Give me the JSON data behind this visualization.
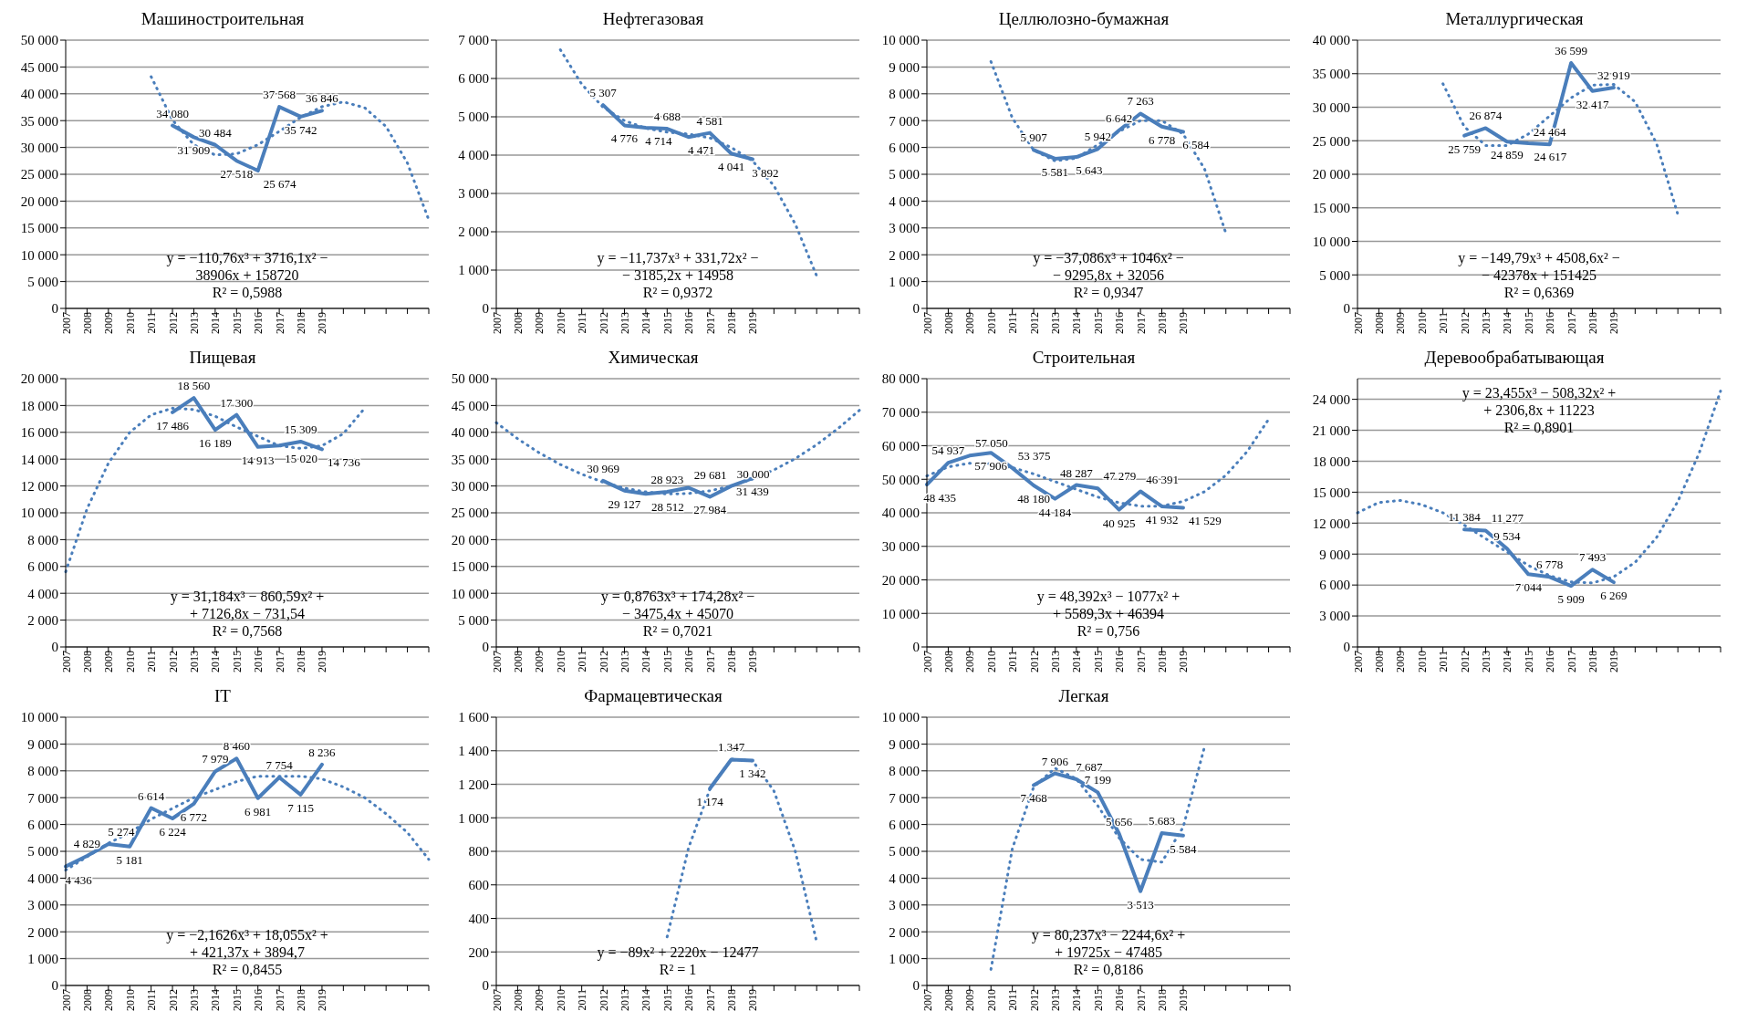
{
  "chart_data": [
    {
      "type": "line",
      "title": "Машиностроительная",
      "categories": [
        "2007",
        "2008",
        "2009",
        "2010",
        "2011",
        "2012",
        "2013",
        "2014",
        "2015",
        "2016",
        "2017",
        "2018",
        "2019",
        null,
        null,
        null,
        null,
        null
      ],
      "ylim": [
        0,
        50000
      ],
      "yticks": [
        0,
        5000,
        10000,
        15000,
        20000,
        25000,
        30000,
        35000,
        40000,
        45000,
        50000
      ],
      "grid": "y",
      "annotations": [
        "y = −110,76x³ + 3716,1x² −",
        "38906x + 158720",
        "R² = 0,5988"
      ],
      "series": [
        {
          "color": "#4a7ebb",
          "line_style": "solid",
          "data_labels": true,
          "values": [
            null,
            null,
            null,
            null,
            null,
            34080,
            31909,
            30484,
            27518,
            25674,
            37568,
            35742,
            36846,
            null,
            null,
            null,
            null,
            null
          ]
        },
        {
          "type": "line",
          "color": "#4a7ebb",
          "line_style": "dotted",
          "values": [
            null,
            null,
            null,
            null,
            43200,
            35100,
            30500,
            28600,
            28800,
            30500,
            33000,
            35600,
            37600,
            38500,
            37400,
            33900,
            27100,
            16500
          ]
        }
      ]
    },
    {
      "type": "line",
      "title": "Нефтегазовая",
      "categories": [
        "2007",
        "2008",
        "2009",
        "2010",
        "2011",
        "2012",
        "2013",
        "2014",
        "2015",
        "2016",
        "2017",
        "2018",
        "2019",
        null,
        null,
        null,
        null,
        null
      ],
      "ylim": [
        0,
        7000
      ],
      "yticks": [
        0,
        1000,
        2000,
        3000,
        4000,
        5000,
        6000,
        7000
      ],
      "grid": "y",
      "annotations": [
        "y = −11,737x³ + 331,72x² −",
        "− 3185,2x + 14958",
        "R² = 0,9372"
      ],
      "series": [
        {
          "color": "#4a7ebb",
          "line_style": "solid",
          "data_labels": true,
          "values": [
            null,
            null,
            null,
            null,
            null,
            5307,
            4776,
            4714,
            4688,
            4471,
            4581,
            4041,
            3892,
            null,
            null,
            null,
            null,
            null
          ]
        },
        {
          "type": "line",
          "color": "#4a7ebb",
          "line_style": "dotted",
          "values": [
            null,
            null,
            null,
            6750,
            5850,
            5250,
            4900,
            4700,
            4600,
            4550,
            4450,
            4200,
            3850,
            3200,
            2200,
            850,
            null,
            null
          ]
        }
      ]
    },
    {
      "type": "line",
      "title": "Целлюлозно-бумажная",
      "categories": [
        "2007",
        "2008",
        "2009",
        "2010",
        "2011",
        "2012",
        "2013",
        "2014",
        "2015",
        "2016",
        "2017",
        "2018",
        "2019",
        null,
        null,
        null,
        null,
        null
      ],
      "ylim": [
        0,
        10000
      ],
      "yticks": [
        0,
        1000,
        2000,
        3000,
        4000,
        5000,
        6000,
        7000,
        8000,
        9000,
        10000
      ],
      "grid": "y",
      "annotations": [
        "y = −37,086x³ + 1046x² −",
        "− 9295,8x + 32056",
        "R² = 0,9347"
      ],
      "series": [
        {
          "color": "#4a7ebb",
          "line_style": "solid",
          "data_labels": true,
          "values": [
            null,
            null,
            null,
            null,
            null,
            5907,
            5581,
            5643,
            5942,
            6642,
            7263,
            6778,
            6584,
            null,
            null,
            null,
            null,
            null
          ]
        },
        {
          "type": "line",
          "color": "#4a7ebb",
          "line_style": "dotted",
          "values": [
            null,
            null,
            null,
            9200,
            7100,
            5900,
            5500,
            5600,
            6100,
            6600,
            7000,
            7000,
            6500,
            5200,
            2800,
            null,
            null,
            null
          ]
        }
      ]
    },
    {
      "type": "line",
      "title": "Металлургическая",
      "categories": [
        "2007",
        "2008",
        "2009",
        "2010",
        "2011",
        "2012",
        "2013",
        "2014",
        "2015",
        "2016",
        "2017",
        "2018",
        "2019",
        null,
        null,
        null,
        null,
        null
      ],
      "ylim": [
        0,
        40000
      ],
      "yticks": [
        0,
        5000,
        10000,
        15000,
        20000,
        25000,
        30000,
        35000,
        40000
      ],
      "grid": "y",
      "annotations": [
        "y = −149,79x³ + 4508,6x² −",
        "− 42378x + 151425",
        "R² = 0,6369"
      ],
      "series": [
        {
          "color": "#4a7ebb",
          "line_style": "solid",
          "data_labels": true,
          "values": [
            null,
            null,
            null,
            null,
            null,
            25759,
            26874,
            24859,
            24617,
            24464,
            36599,
            32417,
            32919,
            null,
            null,
            null,
            null,
            null
          ]
        },
        {
          "type": "line",
          "color": "#4a7ebb",
          "line_style": "dotted",
          "values": [
            null,
            null,
            null,
            null,
            33500,
            27100,
            24300,
            24300,
            26000,
            28700,
            31400,
            33300,
            33400,
            30800,
            24600,
            14000,
            null,
            null
          ]
        }
      ]
    },
    {
      "type": "line",
      "title": "Пищевая",
      "categories": [
        "2007",
        "2008",
        "2009",
        "2010",
        "2011",
        "2012",
        "2013",
        "2014",
        "2015",
        "2016",
        "2017",
        "2018",
        "2019",
        null,
        null,
        null,
        null,
        null
      ],
      "ylim": [
        0,
        20000
      ],
      "yticks": [
        0,
        2000,
        4000,
        6000,
        8000,
        10000,
        12000,
        14000,
        16000,
        18000,
        20000
      ],
      "grid": "y",
      "annotations": [
        "y = 31,184x³ − 860,59x² +",
        "+ 7126,8x − 731,54",
        "R² = 0,7568"
      ],
      "series": [
        {
          "color": "#4a7ebb",
          "line_style": "solid",
          "data_labels": true,
          "values": [
            null,
            null,
            null,
            null,
            null,
            17486,
            18560,
            16189,
            17300,
            14913,
            15020,
            15309,
            14736,
            null,
            null,
            null,
            null,
            null
          ]
        },
        {
          "type": "line",
          "color": "#4a7ebb",
          "line_style": "dotted",
          "values": [
            5600,
            10300,
            13700,
            16000,
            17300,
            17800,
            17700,
            17200,
            16400,
            15700,
            15000,
            14800,
            15000,
            15900,
            17800,
            null,
            null,
            null
          ]
        }
      ]
    },
    {
      "type": "line",
      "title": "Химическая",
      "categories": [
        "2007",
        "2008",
        "2009",
        "2010",
        "2011",
        "2012",
        "2013",
        "2014",
        "2015",
        "2016",
        "2017",
        "2018",
        "2019",
        null,
        null,
        null,
        null,
        null
      ],
      "ylim": [
        0,
        50000
      ],
      "yticks": [
        0,
        5000,
        10000,
        15000,
        20000,
        25000,
        30000,
        35000,
        40000,
        45000,
        50000
      ],
      "grid": "y",
      "annotations": [
        "y = 0,8763x³ + 174,28x² −",
        "− 3475,4x + 45070",
        "R² = 0,7021"
      ],
      "series": [
        {
          "color": "#4a7ebb",
          "line_style": "solid",
          "data_labels": true,
          "values": [
            null,
            null,
            null,
            null,
            null,
            30969,
            29127,
            28512,
            28923,
            29681,
            27984,
            30000,
            31439,
            null,
            null,
            null,
            null,
            null
          ]
        },
        {
          "type": "line",
          "color": "#4a7ebb",
          "line_style": "dotted",
          "values": [
            41800,
            38800,
            36200,
            34000,
            32200,
            30700,
            29600,
            28900,
            28500,
            28600,
            29100,
            30000,
            31300,
            33000,
            35100,
            37700,
            40700,
            44100
          ]
        }
      ]
    },
    {
      "type": "line",
      "title": "Строительная",
      "categories": [
        "2007",
        "2008",
        "2009",
        "2010",
        "2011",
        "2012",
        "2013",
        "2014",
        "2015",
        "2016",
        "2017",
        "2018",
        "2019",
        null,
        null,
        null,
        null,
        null
      ],
      "ylim": [
        0,
        80000
      ],
      "yticks": [
        0,
        10000,
        20000,
        30000,
        40000,
        50000,
        60000,
        70000,
        80000
      ],
      "grid": "y",
      "annotations": [
        "y = 48,392x³ − 1077x² +",
        "+ 5589,3x + 46394",
        "R² = 0,756"
      ],
      "series": [
        {
          "color": "#4a7ebb",
          "line_style": "solid",
          "data_labels": true,
          "values": [
            48435,
            54937,
            57050,
            57906,
            53375,
            48180,
            44184,
            48287,
            47279,
            40925,
            46391,
            41932,
            41529,
            null,
            null,
            null,
            null,
            null
          ]
        },
        {
          "type": "line",
          "color": "#4a7ebb",
          "line_style": "dotted",
          "values": [
            51000,
            53700,
            54800,
            54600,
            53500,
            51600,
            49300,
            47000,
            44700,
            43000,
            42000,
            42000,
            43400,
            46300,
            51200,
            58300,
            67900,
            null
          ]
        }
      ]
    },
    {
      "type": "line",
      "title": "Деревообрабатывающая",
      "categories": [
        "2007",
        "2008",
        "2009",
        "2010",
        "2011",
        "2012",
        "2013",
        "2014",
        "2015",
        "2016",
        "2017",
        "2018",
        "2019",
        null,
        null,
        null,
        null,
        null
      ],
      "ylim": [
        0,
        26000
      ],
      "yticks": [
        0,
        3000,
        6000,
        9000,
        12000,
        15000,
        18000,
        21000,
        24000
      ],
      "grid": "y",
      "annotations": [
        "y = 23,455x³ − 508,32x² +",
        "+ 2306,8x + 11223",
        "R² = 0,8901"
      ],
      "series": [
        {
          "color": "#4a7ebb",
          "line_style": "solid",
          "data_labels": true,
          "values": [
            null,
            null,
            null,
            null,
            null,
            11384,
            11277,
            9534,
            7044,
            6778,
            5909,
            7493,
            6269,
            null,
            null,
            null,
            null,
            null
          ]
        },
        {
          "type": "line",
          "color": "#4a7ebb",
          "line_style": "dotted",
          "values": [
            13000,
            14000,
            14200,
            13800,
            13000,
            11800,
            10500,
            9200,
            7900,
            6900,
            6300,
            6200,
            6800,
            8200,
            10600,
            14100,
            18800,
            24800
          ]
        }
      ]
    },
    {
      "type": "line",
      "title": "IT",
      "categories": [
        "2007",
        "2008",
        "2009",
        "2010",
        "2011",
        "2012",
        "2013",
        "2014",
        "2015",
        "2016",
        "2017",
        "2018",
        "2019",
        null,
        null,
        null,
        null,
        null
      ],
      "ylim": [
        0,
        10000
      ],
      "yticks": [
        0,
        1000,
        2000,
        3000,
        4000,
        5000,
        6000,
        7000,
        8000,
        9000,
        10000
      ],
      "grid": "y",
      "annotations": [
        "y = −2,1626x³ + 18,055x² +",
        "+ 421,37x + 3894,7",
        "R² = 0,8455"
      ],
      "series": [
        {
          "color": "#4a7ebb",
          "line_style": "solid",
          "data_labels": true,
          "values": [
            4436,
            4829,
            5274,
            5181,
            6614,
            6224,
            6772,
            7979,
            8460,
            6981,
            7754,
            7115,
            8236,
            null,
            null,
            null,
            null,
            null
          ]
        },
        {
          "type": "line",
          "color": "#4a7ebb",
          "line_style": "dotted",
          "values": [
            4300,
            4800,
            5300,
            5700,
            6200,
            6600,
            7000,
            7300,
            7600,
            7800,
            7800,
            7800,
            7700,
            7400,
            7000,
            6400,
            5700,
            4700
          ]
        }
      ]
    },
    {
      "type": "line",
      "title": "Фармацевтическая",
      "categories": [
        "2007",
        "2008",
        "2009",
        "2010",
        "2011",
        "2012",
        "2013",
        "2014",
        "2015",
        "2016",
        "2017",
        "2018",
        "2019",
        null,
        null,
        null,
        null,
        null
      ],
      "ylim": [
        0,
        1600
      ],
      "yticks": [
        0,
        200,
        400,
        600,
        800,
        1000,
        1200,
        1400,
        1600
      ],
      "grid": "y",
      "annotations": [
        "y = −89x² + 2220x − 12477",
        "R² = 1"
      ],
      "series": [
        {
          "color": "#4a7ebb",
          "line_style": "solid",
          "data_labels": true,
          "values": [
            null,
            null,
            null,
            null,
            null,
            null,
            null,
            null,
            null,
            null,
            1174,
            1347,
            1342,
            null,
            null,
            null,
            null,
            null
          ]
        },
        {
          "type": "line",
          "color": "#4a7ebb",
          "line_style": "dotted",
          "values": [
            null,
            null,
            null,
            null,
            null,
            null,
            null,
            null,
            290,
            820,
            1170,
            1350,
            1340,
            1160,
            800,
            260,
            null,
            null
          ]
        }
      ]
    },
    {
      "type": "line",
      "title": "Легкая",
      "categories": [
        "2007",
        "2008",
        "2009",
        "2010",
        "2011",
        "2012",
        "2013",
        "2014",
        "2015",
        "2016",
        "2017",
        "2018",
        "2019",
        null,
        null,
        null,
        null,
        null
      ],
      "ylim": [
        0,
        10000
      ],
      "yticks": [
        0,
        1000,
        2000,
        3000,
        4000,
        5000,
        6000,
        7000,
        8000,
        9000,
        10000
      ],
      "grid": "y",
      "annotations": [
        "y = 80,237x³ − 2244,6x² +",
        "+ 19725x − 47485",
        "R² = 0,8186"
      ],
      "series": [
        {
          "color": "#4a7ebb",
          "line_style": "solid",
          "data_labels": true,
          "values": [
            null,
            null,
            null,
            null,
            null,
            7468,
            7906,
            7687,
            7199,
            5656,
            3513,
            5683,
            5584,
            null,
            null,
            null,
            null,
            null
          ]
        },
        {
          "type": "line",
          "color": "#4a7ebb",
          "line_style": "dotted",
          "values": [
            null,
            null,
            null,
            600,
            5100,
            7400,
            8100,
            7700,
            6700,
            5500,
            4700,
            4600,
            5900,
            8900,
            null,
            null,
            null,
            null
          ]
        }
      ]
    }
  ]
}
